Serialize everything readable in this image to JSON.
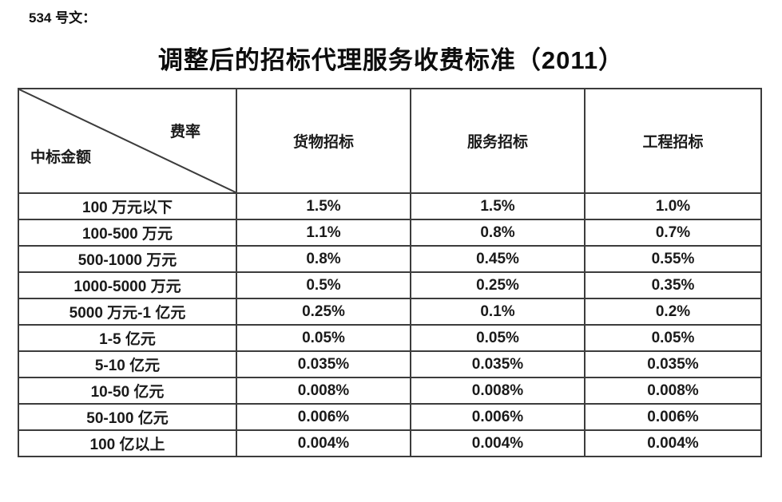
{
  "page": {
    "doc_label": "534 号文：",
    "title": "调整后的招标代理服务收费标准（2011）"
  },
  "colors": {
    "text": "#1a1a1a",
    "border": "#3c3c3c",
    "background": "#ffffff"
  },
  "table": {
    "corner": {
      "top_right": "费率",
      "bottom_left": "中标金额"
    },
    "columns": [
      "货物招标",
      "服务招标",
      "工程招标"
    ],
    "rows": [
      {
        "label": "100 万元以下",
        "values": [
          "1.5%",
          "1.5%",
          "1.0%"
        ]
      },
      {
        "label": "100-500 万元",
        "values": [
          "1.1%",
          "0.8%",
          "0.7%"
        ]
      },
      {
        "label": "500-1000 万元",
        "values": [
          "0.8%",
          "0.45%",
          "0.55%"
        ]
      },
      {
        "label": "1000-5000 万元",
        "values": [
          "0.5%",
          "0.25%",
          "0.35%"
        ]
      },
      {
        "label": "5000 万元-1 亿元",
        "values": [
          "0.25%",
          "0.1%",
          "0.2%"
        ]
      },
      {
        "label": "1-5 亿元",
        "values": [
          "0.05%",
          "0.05%",
          "0.05%"
        ]
      },
      {
        "label": "5-10 亿元",
        "values": [
          "0.035%",
          "0.035%",
          "0.035%"
        ]
      },
      {
        "label": "10-50 亿元",
        "values": [
          "0.008%",
          "0.008%",
          "0.008%"
        ]
      },
      {
        "label": "50-100 亿元",
        "values": [
          "0.006%",
          "0.006%",
          "0.006%"
        ]
      },
      {
        "label": "100 亿以上",
        "values": [
          "0.004%",
          "0.004%",
          "0.004%"
        ]
      }
    ]
  }
}
